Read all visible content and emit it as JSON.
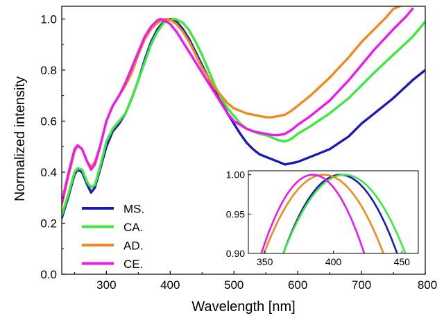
{
  "chart_data": [
    {
      "type": "line",
      "xlabel": "Wavelength [nm]",
      "ylabel": "Normalized intensity",
      "xlim": [
        230,
        800
      ],
      "ylim": [
        0.0,
        1.05
      ],
      "xticks": [
        300,
        400,
        500,
        600,
        700,
        800
      ],
      "yticks": [
        0.0,
        0.2,
        0.4,
        0.6,
        0.8,
        1.0
      ],
      "xtick_labels": [
        "300",
        "400",
        "500",
        "600",
        "700",
        "800"
      ],
      "ytick_labels": [
        "0.0",
        "0.2",
        "0.4",
        "0.6",
        "0.8",
        "1.0"
      ],
      "grid": false,
      "legend_position": "bottom-left",
      "series": [
        {
          "name": "MS.",
          "color": "#1a1ab4",
          "x": [
            230,
            240,
            250,
            255,
            262,
            270,
            276,
            282,
            290,
            300,
            310,
            320,
            330,
            340,
            350,
            360,
            370,
            380,
            390,
            400,
            405,
            410,
            420,
            430,
            440,
            450,
            460,
            470,
            480,
            490,
            500,
            510,
            520,
            530,
            540,
            550,
            560,
            570,
            580,
            590,
            600,
            620,
            650,
            680,
            700,
            720,
            750,
            780,
            800
          ],
          "y": [
            0.22,
            0.3,
            0.39,
            0.41,
            0.4,
            0.35,
            0.32,
            0.34,
            0.41,
            0.5,
            0.56,
            0.59,
            0.63,
            0.69,
            0.76,
            0.84,
            0.91,
            0.96,
            0.99,
            1.0,
            0.998,
            0.99,
            0.96,
            0.92,
            0.87,
            0.82,
            0.77,
            0.72,
            0.68,
            0.63,
            0.59,
            0.55,
            0.515,
            0.49,
            0.47,
            0.46,
            0.45,
            0.44,
            0.43,
            0.435,
            0.44,
            0.46,
            0.49,
            0.54,
            0.59,
            0.63,
            0.69,
            0.76,
            0.8
          ]
        },
        {
          "name": "CA.",
          "color": "#3ee83e",
          "x": [
            230,
            240,
            250,
            255,
            262,
            270,
            276,
            282,
            290,
            300,
            310,
            320,
            330,
            340,
            350,
            360,
            370,
            380,
            390,
            400,
            405,
            410,
            420,
            430,
            440,
            450,
            460,
            470,
            480,
            490,
            500,
            510,
            520,
            530,
            540,
            550,
            560,
            570,
            580,
            590,
            600,
            620,
            650,
            680,
            700,
            720,
            750,
            780,
            800
          ],
          "y": [
            0.23,
            0.31,
            0.4,
            0.415,
            0.41,
            0.36,
            0.34,
            0.35,
            0.42,
            0.52,
            0.57,
            0.6,
            0.63,
            0.69,
            0.76,
            0.83,
            0.9,
            0.95,
            0.985,
            0.997,
            1.0,
            0.998,
            0.985,
            0.955,
            0.91,
            0.86,
            0.8,
            0.74,
            0.69,
            0.65,
            0.62,
            0.59,
            0.57,
            0.56,
            0.55,
            0.545,
            0.535,
            0.525,
            0.52,
            0.53,
            0.55,
            0.58,
            0.63,
            0.69,
            0.74,
            0.79,
            0.86,
            0.93,
            0.99
          ]
        },
        {
          "name": "AD.",
          "color": "#f08a1e",
          "x": [
            230,
            240,
            250,
            255,
            262,
            270,
            276,
            282,
            290,
            300,
            310,
            320,
            330,
            340,
            350,
            360,
            370,
            380,
            390,
            395,
            400,
            410,
            420,
            430,
            440,
            450,
            460,
            470,
            480,
            490,
            500,
            510,
            520,
            530,
            540,
            550,
            560,
            570,
            580,
            590,
            600,
            620,
            650,
            680,
            700,
            720,
            740,
            750,
            760
          ],
          "y": [
            0.27,
            0.38,
            0.48,
            0.505,
            0.49,
            0.44,
            0.42,
            0.44,
            0.5,
            0.6,
            0.66,
            0.7,
            0.74,
            0.79,
            0.86,
            0.92,
            0.96,
            0.985,
            0.998,
            1.0,
            0.997,
            0.98,
            0.95,
            0.91,
            0.86,
            0.81,
            0.77,
            0.73,
            0.7,
            0.67,
            0.65,
            0.64,
            0.63,
            0.625,
            0.62,
            0.615,
            0.615,
            0.62,
            0.625,
            0.64,
            0.66,
            0.7,
            0.77,
            0.85,
            0.91,
            0.96,
            1.01,
            1.04,
            1.05
          ]
        },
        {
          "name": "CE.",
          "color": "#ee18ee",
          "x": [
            230,
            240,
            250,
            255,
            262,
            270,
            276,
            282,
            290,
            300,
            310,
            320,
            330,
            340,
            350,
            360,
            370,
            380,
            385,
            390,
            400,
            410,
            420,
            430,
            440,
            450,
            460,
            470,
            480,
            490,
            500,
            510,
            520,
            530,
            540,
            550,
            560,
            570,
            580,
            590,
            600,
            620,
            650,
            680,
            700,
            720,
            750,
            770,
            780
          ],
          "y": [
            0.28,
            0.39,
            0.49,
            0.505,
            0.49,
            0.44,
            0.41,
            0.43,
            0.5,
            0.6,
            0.66,
            0.7,
            0.75,
            0.81,
            0.87,
            0.93,
            0.97,
            0.995,
            1.0,
            0.997,
            0.98,
            0.95,
            0.91,
            0.87,
            0.83,
            0.79,
            0.75,
            0.71,
            0.67,
            0.63,
            0.6,
            0.585,
            0.57,
            0.56,
            0.555,
            0.55,
            0.545,
            0.545,
            0.55,
            0.565,
            0.585,
            0.62,
            0.68,
            0.76,
            0.82,
            0.88,
            0.96,
            1.01,
            1.04
          ]
        }
      ]
    },
    {
      "type": "line",
      "xlim": [
        338,
        462
      ],
      "ylim": [
        0.9,
        1.005
      ],
      "xticks": [
        350,
        400,
        450
      ],
      "yticks": [
        0.9,
        0.95,
        1.0
      ],
      "xtick_labels": [
        "350",
        "400",
        "450"
      ],
      "ytick_labels": [
        "0.90",
        "0.95",
        "1.00"
      ],
      "grid": false,
      "series": [
        {
          "name": "MS.",
          "color": "#1a1ab4",
          "center": 405,
          "halfwidth": 41.5
        },
        {
          "name": "CA.",
          "color": "#3ee83e",
          "center": 408,
          "halfwidth": 44.5
        },
        {
          "name": "AD.",
          "color": "#f08a1e",
          "center": 393,
          "halfwidth": 43.5
        },
        {
          "name": "CE.",
          "color": "#ee18ee",
          "center": 385,
          "halfwidth": 37.5
        }
      ]
    }
  ]
}
